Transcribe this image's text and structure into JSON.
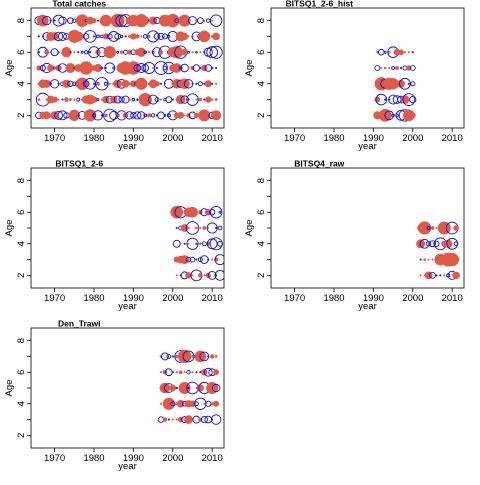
{
  "figure": {
    "colors": {
      "positive": "#e05a47",
      "negative": "#1010e0",
      "axis": "#000000"
    }
  },
  "chart_data": [
    {
      "type": "scatter",
      "subtype": "bubble",
      "title": "Total catches",
      "xlabel": "year",
      "ylabel": "Age",
      "xticks": [
        1970,
        1980,
        1990,
        2000,
        2010
      ],
      "yticks": [
        2,
        4,
        6,
        8
      ],
      "xlim": [
        1964,
        2013
      ],
      "ylim": [
        1.2,
        8.8
      ],
      "years": [
        1966,
        2011
      ],
      "ages": [
        2,
        8
      ],
      "grid": false,
      "legend": "none"
    },
    {
      "type": "scatter",
      "subtype": "bubble",
      "title": "BITSQ1_2-6_hist",
      "xlabel": "year",
      "ylabel": "Age",
      "xticks": [
        1970,
        1980,
        1990,
        2000,
        2010
      ],
      "yticks": [
        2,
        4,
        6,
        8
      ],
      "xlim": [
        1964,
        2013
      ],
      "ylim": [
        1.2,
        8.8
      ],
      "years": [
        1991,
        2000
      ],
      "ages": [
        2,
        6
      ],
      "grid": false,
      "legend": "none"
    },
    {
      "type": "scatter",
      "subtype": "bubble",
      "title": "BITSQ1_2-6",
      "xlabel": "year",
      "ylabel": "Age",
      "xticks": [
        1970,
        1980,
        1990,
        2000,
        2010
      ],
      "yticks": [
        2,
        4,
        6,
        8
      ],
      "xlim": [
        1964,
        2013
      ],
      "ylim": [
        1.2,
        8.8
      ],
      "years": [
        2001,
        2012
      ],
      "ages": [
        2,
        6
      ],
      "grid": false,
      "legend": "none"
    },
    {
      "type": "scatter",
      "subtype": "bubble",
      "title": "BITSQ4_raw",
      "xlabel": "year",
      "ylabel": "Age",
      "xticks": [
        1970,
        1980,
        1990,
        2000,
        2010
      ],
      "yticks": [
        2,
        4,
        6,
        8
      ],
      "xlim": [
        1964,
        2013
      ],
      "ylim": [
        1.2,
        8.8
      ],
      "years": [
        2002,
        2011
      ],
      "ages": [
        2,
        5
      ],
      "grid": false,
      "legend": "none"
    },
    {
      "type": "scatter",
      "subtype": "bubble",
      "title": "Den_Trawl",
      "xlabel": "year",
      "ylabel": "Age",
      "xticks": [
        1970,
        1980,
        1990,
        2000,
        2010
      ],
      "yticks": [
        2,
        4,
        6,
        8
      ],
      "xlim": [
        1964,
        2013
      ],
      "ylim": [
        1.2,
        8.8
      ],
      "years": [
        1997,
        2011
      ],
      "ages": [
        3,
        7
      ],
      "grid": false,
      "legend": "none"
    }
  ]
}
